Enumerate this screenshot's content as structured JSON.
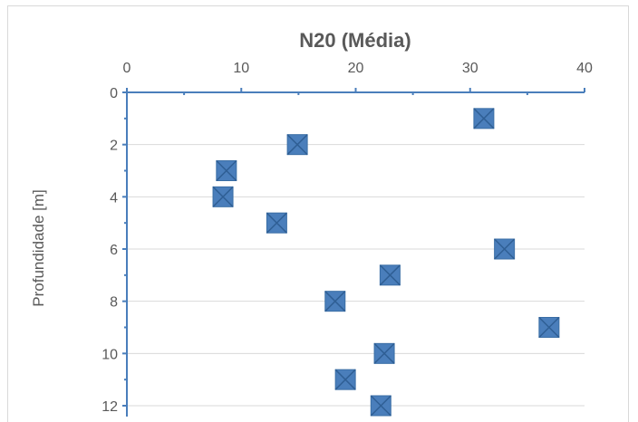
{
  "chart_data": {
    "type": "scatter",
    "title": "N20 (Média)",
    "xlabel": "",
    "ylabel": "Profundidade  [m]",
    "x_axis_position": "top",
    "y_axis_inverted": true,
    "xlim": [
      0,
      40
    ],
    "ylim": [
      0,
      12
    ],
    "x_ticks": [
      "0",
      "10",
      "20",
      "30",
      "40"
    ],
    "y_ticks": [
      "0",
      "2",
      "4",
      "6",
      "8",
      "10",
      "12"
    ],
    "grid": "horizontal",
    "marker_color": "#4a7ebb",
    "series": [
      {
        "x": [
          31.2,
          14.9,
          8.7,
          8.4,
          13.1,
          33.0,
          23.0,
          18.2,
          36.9,
          22.5,
          19.1,
          22.2
        ],
        "y": [
          1,
          2,
          3,
          4,
          5,
          6,
          7,
          8,
          9,
          10,
          11,
          12
        ]
      }
    ]
  }
}
